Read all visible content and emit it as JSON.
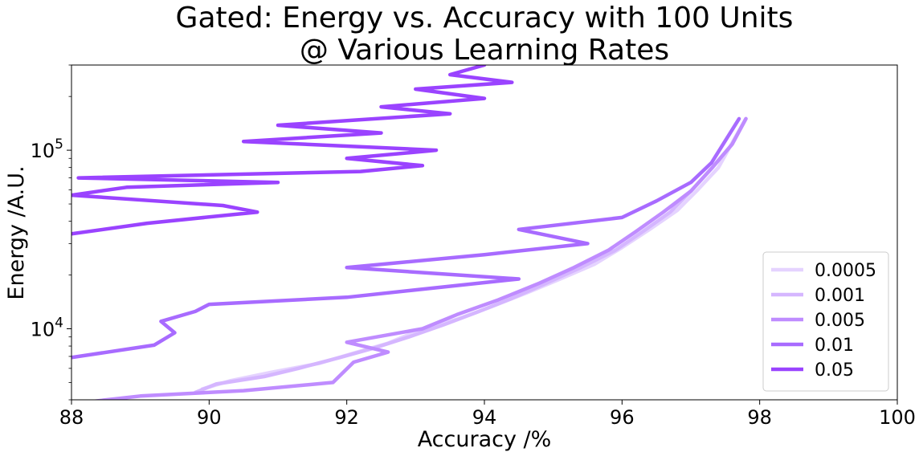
{
  "chart_data": {
    "type": "line",
    "title": "Gated: Energy vs. Accuracy with 100 Units",
    "subtitle": "@ Various Learning Rates",
    "xlabel": "Accuracy /%",
    "ylabel": "Energy /A.U.",
    "xlim": [
      88,
      100
    ],
    "ylim": [
      4000,
      300000
    ],
    "yscale": "log",
    "x_ticks": [
      "88",
      "90",
      "92",
      "94",
      "96",
      "98",
      "100"
    ],
    "y_ticks": [
      {
        "base": "10",
        "exp": "4",
        "value": 10000
      },
      {
        "base": "10",
        "exp": "5",
        "value": 100000
      }
    ],
    "grid": false,
    "legend_position": "lower-right",
    "series": [
      {
        "name": "0.0005",
        "color": "#e5d3ff",
        "x": [
          89.9,
          90.3,
          90.9,
          91.6,
          92.1,
          92.6,
          93.0,
          93.6,
          94.1,
          94.6,
          95.1,
          95.6,
          96.0,
          96.4,
          96.8,
          97.1,
          97.4,
          97.6,
          97.8
        ],
        "y": [
          4600,
          5100,
          5700,
          6400,
          7300,
          8300,
          9600,
          11300,
          13300,
          15800,
          19000,
          23000,
          28500,
          36000,
          46000,
          60000,
          80000,
          110000,
          150000
        ]
      },
      {
        "name": "0.001",
        "color": "#d5b6ff",
        "x": [
          89.8,
          90.1,
          90.8,
          91.3,
          91.9,
          92.4,
          92.9,
          93.4,
          93.9,
          94.4,
          94.9,
          95.4,
          95.9,
          96.3,
          96.7,
          97.0,
          97.3,
          97.6,
          97.8
        ],
        "y": [
          4400,
          4900,
          5400,
          6000,
          6900,
          7800,
          9000,
          10500,
          12400,
          14800,
          18000,
          22000,
          27500,
          35000,
          45000,
          59000,
          79000,
          108000,
          150000
        ]
      },
      {
        "name": "0.005",
        "color": "#bf8cff",
        "x": [
          88.0,
          89.0,
          90.5,
          91.8,
          92.1,
          92.6,
          92.0,
          93.1,
          93.6,
          94.2,
          94.8,
          95.3,
          95.8,
          96.2,
          96.6,
          97.0,
          97.3,
          97.6,
          97.8
        ],
        "y": [
          3800,
          4200,
          4500,
          5000,
          6500,
          7400,
          8400,
          10000,
          12000,
          14500,
          18000,
          22000,
          27500,
          35000,
          45000,
          59000,
          79000,
          108000,
          150000
        ]
      },
      {
        "name": "0.01",
        "color": "#a86bff",
        "x": [
          88.0,
          89.2,
          89.5,
          89.3,
          89.8,
          90.0,
          92.0,
          93.0,
          94.5,
          92.0,
          94.0,
          95.5,
          94.5,
          96.0,
          96.5,
          97.0,
          97.3,
          97.7
        ],
        "y": [
          6900,
          8100,
          9500,
          11000,
          12500,
          13700,
          15000,
          16500,
          19000,
          22000,
          26000,
          30000,
          36000,
          42000,
          52000,
          66000,
          85000,
          150000
        ]
      },
      {
        "name": "0.05",
        "color": "#9a43ff",
        "x": [
          88.0,
          89.1,
          90.7,
          90.2,
          88.0,
          88.8,
          91.0,
          88.1,
          92.2,
          93.1,
          92.0,
          93.3,
          90.5,
          92.5,
          91.0,
          93.5,
          92.5,
          94.0,
          93.0,
          94.4,
          93.5,
          94.0
        ],
        "y": [
          34000,
          39000,
          45000,
          49000,
          56000,
          62000,
          66000,
          70000,
          76000,
          82000,
          90000,
          100000,
          112000,
          125000,
          138000,
          160000,
          175000,
          195000,
          220000,
          240000,
          265000,
          300000
        ]
      }
    ]
  }
}
